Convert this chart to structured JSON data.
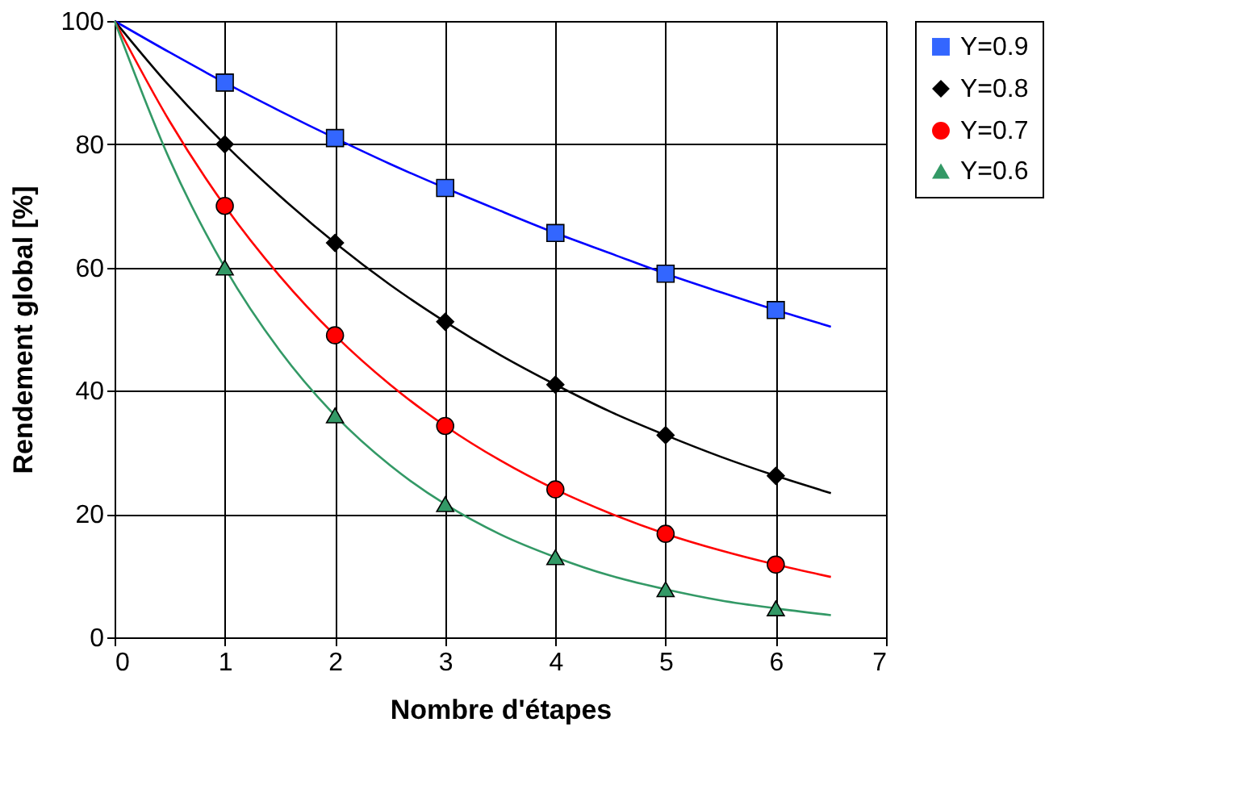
{
  "chart_data": {
    "type": "line",
    "xlabel": "Nombre d'étapes",
    "ylabel": "Rendement global  [%]",
    "xlim": [
      0,
      7
    ],
    "xticks": [
      0,
      1,
      2,
      3,
      4,
      5,
      6,
      7
    ],
    "ylim": [
      0,
      100
    ],
    "yticks": [
      0,
      20,
      40,
      60,
      80,
      100
    ],
    "grid": true,
    "legend": "right",
    "series": [
      {
        "color": "#0000ff",
        "marker": "none",
        "x": [
          0,
          0.5,
          1,
          1.5,
          2,
          2.5,
          3,
          3.5,
          4,
          4.5,
          5,
          5.5,
          6,
          6.5
        ],
        "values": [
          100,
          94.9,
          90,
          85.4,
          81,
          76.8,
          72.9,
          69.2,
          65.6,
          62.3,
          59,
          56,
          53.1,
          50.4
        ]
      },
      {
        "color": "#000000",
        "marker": "none",
        "x": [
          0,
          0.5,
          1,
          1.5,
          2,
          2.5,
          3,
          3.5,
          4,
          4.5,
          5,
          5.5,
          6,
          6.5
        ],
        "values": [
          100,
          89.4,
          80,
          71.6,
          64,
          57.2,
          51.2,
          45.8,
          41,
          36.6,
          32.8,
          29.3,
          26.2,
          23.4
        ]
      },
      {
        "color": "#ff0000",
        "marker": "none",
        "x": [
          0,
          0.5,
          1,
          1.5,
          2,
          2.5,
          3,
          3.5,
          4,
          4.5,
          5,
          5.5,
          6,
          6.5
        ],
        "values": [
          100,
          83.7,
          70,
          58.6,
          49,
          41,
          34.3,
          28.7,
          24,
          20.1,
          16.8,
          14.1,
          11.8,
          9.8
        ]
      },
      {
        "color": "#339966",
        "marker": "none",
        "x": [
          0,
          0.5,
          1,
          1.5,
          2,
          2.5,
          3,
          3.5,
          4,
          4.5,
          5,
          5.5,
          6,
          6.5
        ],
        "values": [
          100,
          77.5,
          60,
          46.5,
          36,
          27.9,
          21.6,
          16.7,
          13,
          10,
          7.8,
          6,
          4.7,
          3.6
        ]
      },
      {
        "type": "scatter",
        "name": "Y=0.9",
        "color": "#3366ff",
        "marker": "square",
        "x": [
          1,
          2,
          3,
          4,
          5,
          6
        ],
        "values": [
          90,
          81,
          72.9,
          65.6,
          59,
          53.1
        ]
      },
      {
        "type": "scatter",
        "name": "Y=0.8",
        "color": "#000000",
        "marker": "diamond",
        "x": [
          1,
          2,
          3,
          4,
          5,
          6
        ],
        "values": [
          80,
          64,
          51.2,
          41,
          32.8,
          26.2
        ]
      },
      {
        "type": "scatter",
        "name": "Y=0.7",
        "color": "#ff0000",
        "marker": "circle",
        "x": [
          1,
          2,
          3,
          4,
          5,
          6
        ],
        "values": [
          70,
          49,
          34.3,
          24,
          16.8,
          11.8
        ]
      },
      {
        "type": "scatter",
        "name": "Y=0.6",
        "color": "#339966",
        "marker": "triangle",
        "x": [
          1,
          2,
          3,
          4,
          5,
          6
        ],
        "values": [
          60,
          36,
          21.6,
          13,
          7.8,
          4.7
        ]
      }
    ]
  }
}
